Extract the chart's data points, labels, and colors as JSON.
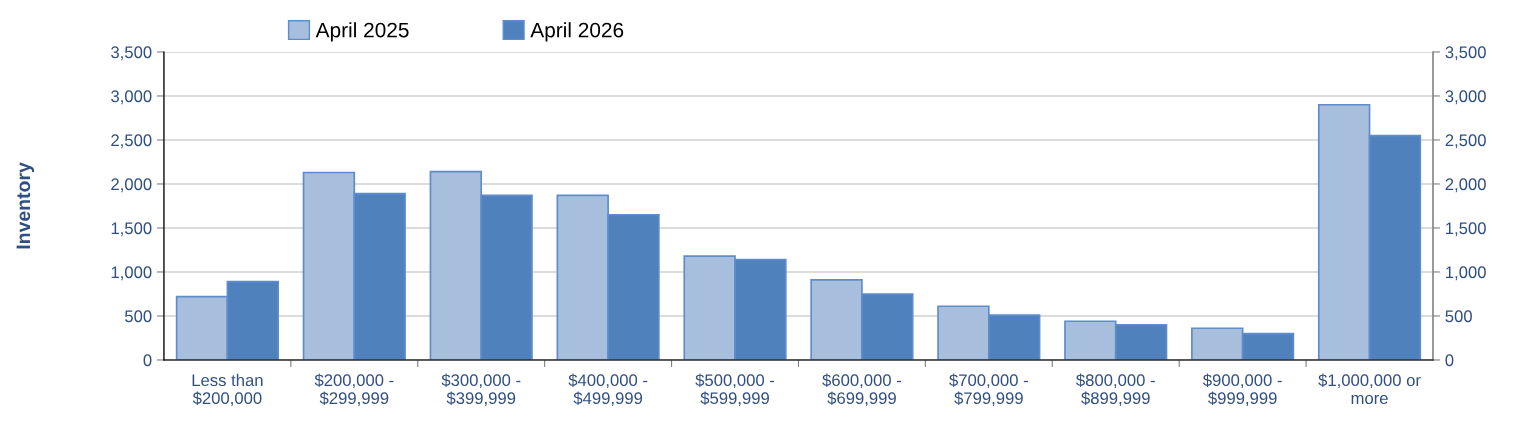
{
  "chart_data": {
    "type": "bar",
    "ylabel": "Inventory",
    "categories": [
      "Less than\n$200,000",
      "$200,000 -\n$299,999",
      "$300,000 -\n$399,999",
      "$400,000 -\n$499,999",
      "$500,000 -\n$599,999",
      "$600,000 -\n$699,999",
      "$700,000 -\n$799,999",
      "$800,000 -\n$899,999",
      "$900,000 -\n$999,999",
      "$1,000,000 or\nmore"
    ],
    "series": [
      {
        "name": "April 2025",
        "color": "#a7bfdd",
        "values": [
          720,
          2130,
          2140,
          1870,
          1180,
          910,
          610,
          440,
          360,
          2900
        ]
      },
      {
        "name": "April 2026",
        "color": "#4f81bd",
        "values": [
          890,
          1890,
          1870,
          1650,
          1140,
          750,
          510,
          400,
          300,
          2550
        ]
      }
    ],
    "ylim": [
      0,
      3500
    ],
    "yticks": [
      {
        "value": 0,
        "label": "0"
      },
      {
        "value": 500,
        "label": "500"
      },
      {
        "value": 1000,
        "label": "1,000"
      },
      {
        "value": 1500,
        "label": "1,500"
      },
      {
        "value": 2000,
        "label": "2,000"
      },
      {
        "value": 2500,
        "label": "2,500"
      },
      {
        "value": 3000,
        "label": "3,000"
      },
      {
        "value": 3500,
        "label": "3,500"
      }
    ],
    "y2lim": [
      0,
      3500
    ],
    "y2ticks": [
      {
        "value": 0,
        "label": "0"
      },
      {
        "value": 500,
        "label": "500"
      },
      {
        "value": 1000,
        "label": "1,000"
      },
      {
        "value": 1500,
        "label": "1,500"
      },
      {
        "value": 2000,
        "label": "2,000"
      },
      {
        "value": 2500,
        "label": "2,500"
      },
      {
        "value": 3000,
        "label": "3,000"
      },
      {
        "value": 3500,
        "label": "3,500"
      }
    ],
    "grid": "y",
    "legend": "top left"
  }
}
